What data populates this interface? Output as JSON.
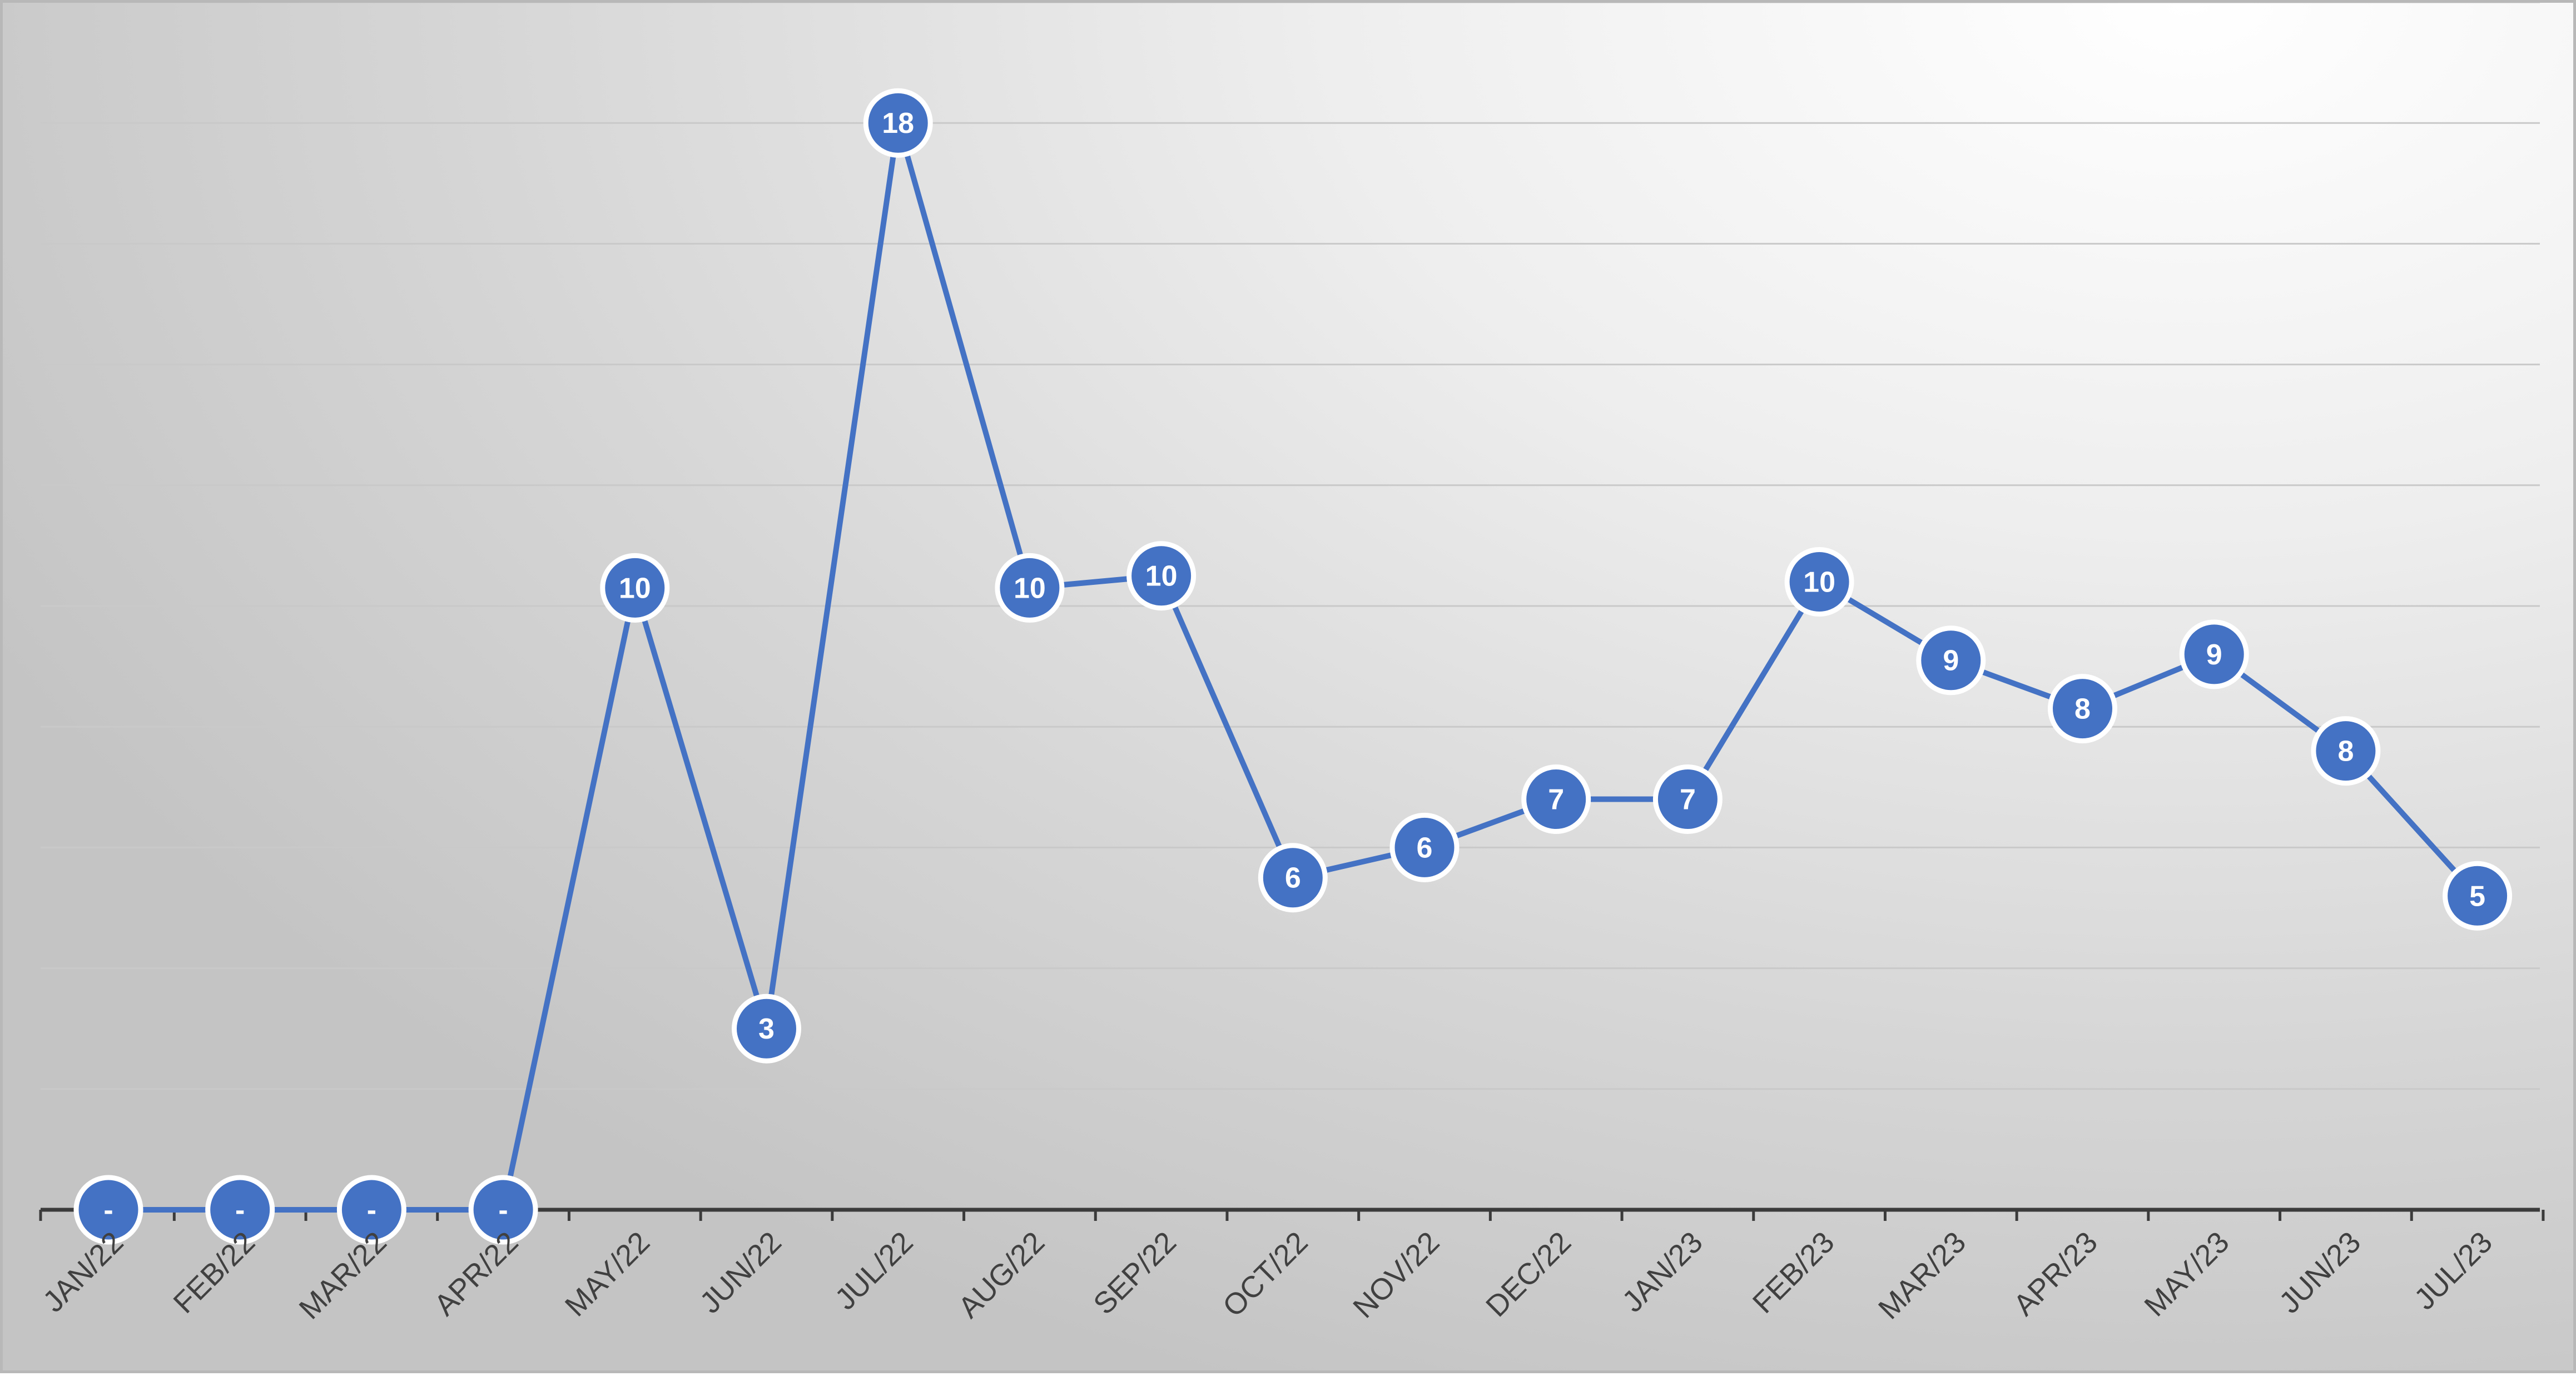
{
  "chart_data": {
    "type": "line",
    "categories": [
      "JAN/22",
      "FEB/22",
      "MAR/22",
      "APR/22",
      "MAY/22",
      "JUN/22",
      "JUL/22",
      "AUG/22",
      "SEP/22",
      "OCT/22",
      "NOV/22",
      "DEC/22",
      "JAN/23",
      "FEB/23",
      "MAR/23",
      "APR/23",
      "MAY/23",
      "JUN/23",
      "JUL/23"
    ],
    "series": [
      {
        "values": [
          0,
          0,
          0,
          0,
          10.3,
          3,
          18,
          10.3,
          10.5,
          5.5,
          6,
          6.8,
          6.8,
          10.4,
          9.1,
          8.3,
          9.2,
          7.6,
          5.2
        ],
        "labels": [
          "-",
          "-",
          "-",
          "-",
          "10",
          "3",
          "18",
          "10",
          "10",
          "6",
          "6",
          "7",
          "7",
          "10",
          "9",
          "8",
          "9",
          "8",
          "5"
        ],
        "color": "#4472c4"
      }
    ],
    "title": "",
    "xlabel": "",
    "ylabel": "",
    "ylim": [
      0,
      20
    ],
    "y_gridlines": [
      2,
      4,
      6,
      8,
      10,
      12,
      14,
      16,
      18,
      20
    ],
    "y_tick_labels_shown": false,
    "grid": true,
    "legend": "none",
    "background": "gray gradient"
  }
}
